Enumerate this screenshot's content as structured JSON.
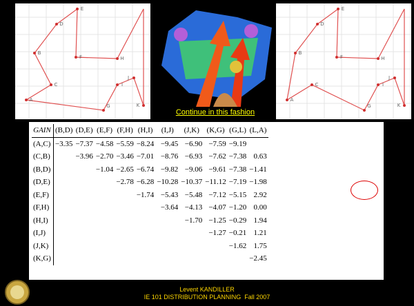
{
  "left_graph": {
    "nodes": [
      "A",
      "B",
      "C",
      "D",
      "E",
      "F",
      "G",
      "H",
      "I",
      "J",
      "K"
    ]
  },
  "right_graph": {
    "nodes": [
      "A",
      "B",
      "C",
      "D",
      "E",
      "F",
      "G",
      "H",
      "I",
      "J",
      "K"
    ]
  },
  "caption": "Continue in this fashion",
  "table": {
    "header": [
      "GAIN",
      "(B,D)",
      "(D,E)",
      "(E,F)",
      "(F,H)",
      "(H,I)",
      "(I,J)",
      "(J,K)",
      "(K,G)",
      "(G,L)",
      "(L,A)"
    ],
    "rows": [
      {
        "label": "(A,C)",
        "cells": [
          "−3.35",
          "−7.37",
          "−4.58",
          "−5.59",
          "−8.24",
          "−9.45",
          "−6.90",
          "−7.59",
          "−9.19",
          null
        ]
      },
      {
        "label": "(C,B)",
        "cells": [
          null,
          "−3.96",
          "−2.70",
          "−3.46",
          "−7.01",
          "−8.76",
          "−6.93",
          "−7.62",
          "−7.38",
          "0.63"
        ]
      },
      {
        "label": "(B,D)",
        "cells": [
          null,
          null,
          "−1.04",
          "−2.65",
          "−6.74",
          "−9.82",
          "−9.06",
          "−9.61",
          "−7.38",
          "−1.41"
        ]
      },
      {
        "label": "(D,E)",
        "cells": [
          null,
          null,
          null,
          "−2.78",
          "−6.28",
          "−10.28",
          "−10.37",
          "−11.12",
          "−7.19",
          "−1.98"
        ]
      },
      {
        "label": "(E,F)",
        "cells": [
          null,
          null,
          null,
          null,
          "−1.74",
          "−5.43",
          "−5.48",
          "−7.12",
          "−5.15",
          "2.92"
        ]
      },
      {
        "label": "(F,H)",
        "cells": [
          null,
          null,
          null,
          null,
          null,
          "−3.64",
          "−4.13",
          "−4.07",
          "−1.20",
          "0.00"
        ]
      },
      {
        "label": "(H,I)",
        "cells": [
          null,
          null,
          null,
          null,
          null,
          null,
          "−1.70",
          "−1.25",
          "−0.29",
          "1.94"
        ]
      },
      {
        "label": "(I,J)",
        "cells": [
          null,
          null,
          null,
          null,
          null,
          null,
          null,
          "−1.27",
          "−0.21",
          "1.21"
        ]
      },
      {
        "label": "(J,K)",
        "cells": [
          null,
          null,
          null,
          null,
          null,
          null,
          null,
          null,
          "−1.62",
          "1.75"
        ]
      },
      {
        "label": "(K,G)",
        "cells": [
          null,
          null,
          null,
          null,
          null,
          null,
          null,
          null,
          null,
          "−2.45"
        ]
      }
    ]
  },
  "footer": {
    "author": "Levent KANDILLER",
    "course": "IE 101 DISTRIBUTION PLANNING  Fall 2007"
  }
}
